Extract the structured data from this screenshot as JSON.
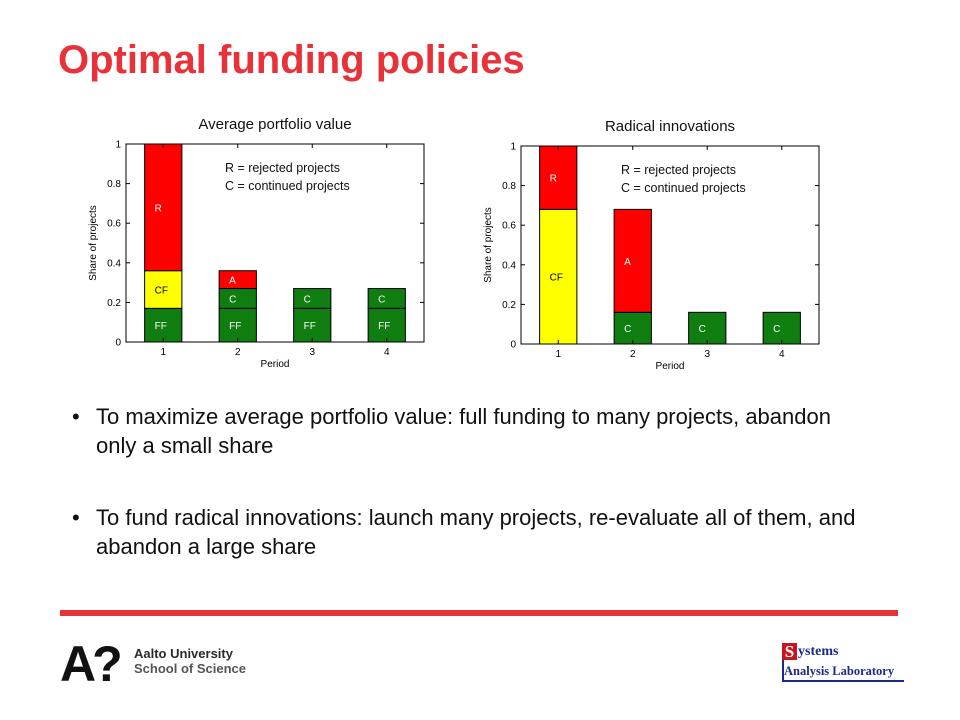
{
  "slide": {
    "title": "Optimal funding policies",
    "bullets": [
      "To maximize average portfolio value: full funding to many projects, abandon only a small share",
      "To fund radical innovations: launch many projects, re-evaluate all of them, and abandon a large share"
    ],
    "bullet_glyph": "•"
  },
  "footer": {
    "aalto_mark": "A?",
    "aalto_university": "Aalto University",
    "aalto_school": "School of Science",
    "sal_initial": "S",
    "sal_word": "ystems",
    "sal_lab": "Analysis Laboratory"
  },
  "colors": {
    "title": "#e8323a",
    "FF": "#0f7d0f",
    "C": "#0f7d0f",
    "CF": "#ffff00",
    "R": "#ff0000",
    "A": "#ff0000",
    "rule": "#e8323a",
    "sal_blue": "#1a2a8a"
  },
  "chart_data": [
    {
      "type": "bar",
      "stacked": true,
      "title": "Average portfolio value",
      "xlabel": "Period",
      "ylabel": "Share of projects",
      "categories": [
        "1",
        "2",
        "3",
        "4"
      ],
      "ylim": [
        0,
        1
      ],
      "yticks": [
        "0",
        "0.2",
        "0.4",
        "0.6",
        "0.8",
        "1"
      ],
      "annotation_lines": [
        "R = rejected projects",
        "C = continued projects"
      ],
      "series": [
        {
          "name": "FF",
          "values": [
            0.17,
            0.17,
            0.17,
            0.17
          ]
        },
        {
          "name": "CF",
          "values": [
            0.19,
            0,
            0,
            0
          ]
        },
        {
          "name": "C",
          "values": [
            0,
            0.1,
            0.1,
            0.1
          ]
        },
        {
          "name": "R",
          "values": [
            0.64,
            0,
            0,
            0
          ]
        },
        {
          "name": "A",
          "values": [
            0,
            0.09,
            0,
            0
          ]
        }
      ]
    },
    {
      "type": "bar",
      "stacked": true,
      "title": "Radical innovations",
      "xlabel": "Period",
      "ylabel": "Share of projects",
      "categories": [
        "1",
        "2",
        "3",
        "4"
      ],
      "ylim": [
        0,
        1
      ],
      "yticks": [
        "0",
        "0.2",
        "0.4",
        "0.6",
        "0.8",
        "1"
      ],
      "annotation_lines": [
        "R = rejected projects",
        "C = continued projects"
      ],
      "series": [
        {
          "name": "CF",
          "values": [
            0.68,
            0,
            0,
            0
          ]
        },
        {
          "name": "R",
          "values": [
            0.32,
            0,
            0,
            0
          ]
        },
        {
          "name": "C",
          "values": [
            0,
            0.16,
            0.16,
            0.16
          ]
        },
        {
          "name": "A",
          "values": [
            0,
            0.52,
            0,
            0
          ]
        }
      ]
    }
  ]
}
